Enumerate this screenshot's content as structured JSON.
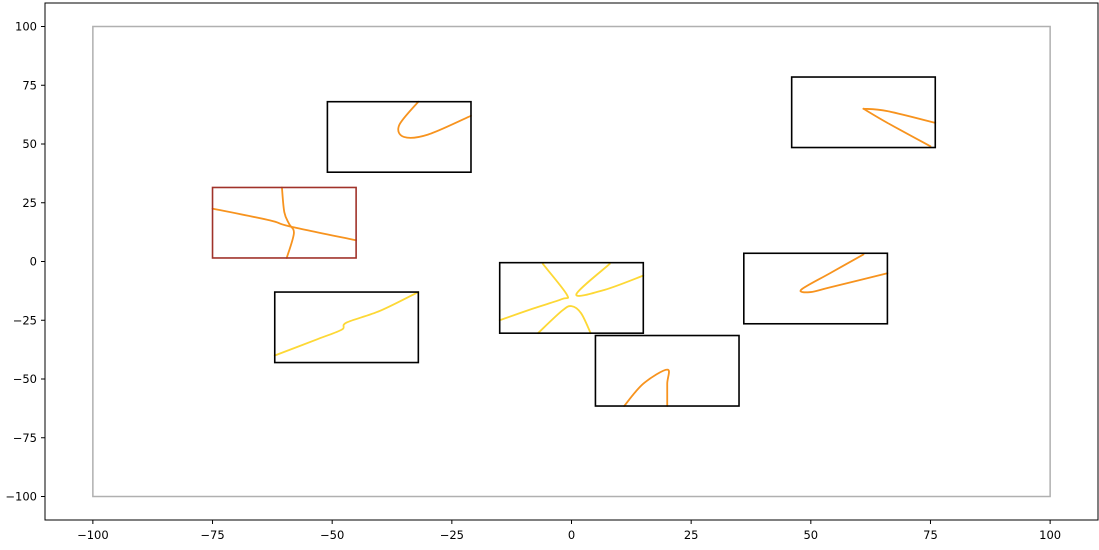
{
  "chart_data": {
    "type": "scatter",
    "title": "",
    "xlabel": "",
    "ylabel": "",
    "xlim": [
      -110,
      110
    ],
    "ylim": [
      -110,
      110
    ],
    "grid": false,
    "x_ticks": [
      -100,
      -75,
      -50,
      -25,
      0,
      25,
      50,
      75,
      100
    ],
    "y_ticks": [
      100,
      75,
      50,
      25,
      0,
      -25,
      -50,
      -75,
      -100
    ],
    "tick_labels_x": [
      "−100",
      "−75",
      "−50",
      "−25",
      "0",
      "25",
      "50",
      "75",
      "100"
    ],
    "tick_labels_y": [
      "100",
      "75",
      "50",
      "25",
      "0",
      "−25",
      "−50",
      "−75",
      "−100"
    ],
    "outer_border": {
      "x": [
        -100,
        100
      ],
      "y": [
        -100,
        100
      ],
      "color": "#b0b0b0"
    },
    "boxes": [
      {
        "x": [
          -51,
          -21
        ],
        "y": [
          38,
          68
        ],
        "color": "#000000"
      },
      {
        "x": [
          46,
          76
        ],
        "y": [
          48.5,
          78.5
        ],
        "color": "#000000"
      },
      {
        "x": [
          -75,
          -45
        ],
        "y": [
          1.5,
          31.5
        ],
        "color": "#a0322a"
      },
      {
        "x": [
          -62,
          -32
        ],
        "y": [
          -43,
          -13
        ],
        "color": "#000000"
      },
      {
        "x": [
          -15,
          15
        ],
        "y": [
          -30.5,
          -0.5
        ],
        "color": "#000000"
      },
      {
        "x": [
          5,
          35
        ],
        "y": [
          -61.5,
          -31.5
        ],
        "color": "#000000"
      },
      {
        "x": [
          36,
          66
        ],
        "y": [
          -26.5,
          3.5
        ],
        "color": "#000000"
      }
    ],
    "curves": [
      {
        "color": "#f7931e",
        "points": [
          [
            -32,
            68
          ],
          [
            -36,
            58
          ],
          [
            -35,
            53
          ],
          [
            -30,
            54
          ],
          [
            -21,
            62
          ]
        ]
      },
      {
        "color": "#f7931e",
        "points": [
          [
            61,
            65
          ],
          [
            66,
            64
          ],
          [
            76,
            59
          ]
        ]
      },
      {
        "color": "#f7931e",
        "points": [
          [
            61,
            65
          ],
          [
            66,
            59
          ],
          [
            75,
            49
          ]
        ]
      },
      {
        "color": "#f7931e",
        "points": [
          [
            -75,
            22.5
          ],
          [
            -63,
            17.5
          ],
          [
            -59,
            15
          ],
          [
            -45,
            9
          ]
        ]
      },
      {
        "color": "#f7931e",
        "points": [
          [
            -60.5,
            31.5
          ],
          [
            -60,
            21
          ],
          [
            -59,
            16
          ],
          [
            -58,
            12
          ],
          [
            -59.5,
            1.5
          ]
        ]
      },
      {
        "color": "#fdd835",
        "points": [
          [
            -62,
            -40
          ],
          [
            -53,
            -33
          ],
          [
            -48,
            -29
          ],
          [
            -47,
            -26
          ],
          [
            -40,
            -21
          ],
          [
            -32,
            -13
          ]
        ]
      },
      {
        "color": "#fdd835",
        "points": [
          [
            -15,
            -25
          ],
          [
            -8,
            -20
          ],
          [
            -2,
            -16
          ],
          [
            -1,
            -14
          ],
          [
            -6,
            -1
          ]
        ]
      },
      {
        "color": "#fdd835",
        "points": [
          [
            8,
            -1
          ],
          [
            1,
            -14
          ],
          [
            7,
            -12
          ],
          [
            15,
            -6
          ]
        ]
      },
      {
        "color": "#fdd835",
        "points": [
          [
            -7,
            -30.5
          ],
          [
            -2,
            -21
          ],
          [
            0,
            -19
          ],
          [
            2,
            -22
          ],
          [
            4,
            -30.5
          ]
        ]
      },
      {
        "color": "#f7931e",
        "points": [
          [
            11,
            -61.5
          ],
          [
            15,
            -52
          ],
          [
            20,
            -46
          ],
          [
            20,
            -52
          ],
          [
            20,
            -61.5
          ]
        ]
      },
      {
        "color": "#f7931e",
        "points": [
          [
            66,
            -5
          ],
          [
            54,
            -11
          ],
          [
            50,
            -13
          ],
          [
            48,
            -12
          ],
          [
            54,
            -5
          ],
          [
            61,
            3
          ]
        ]
      }
    ]
  }
}
